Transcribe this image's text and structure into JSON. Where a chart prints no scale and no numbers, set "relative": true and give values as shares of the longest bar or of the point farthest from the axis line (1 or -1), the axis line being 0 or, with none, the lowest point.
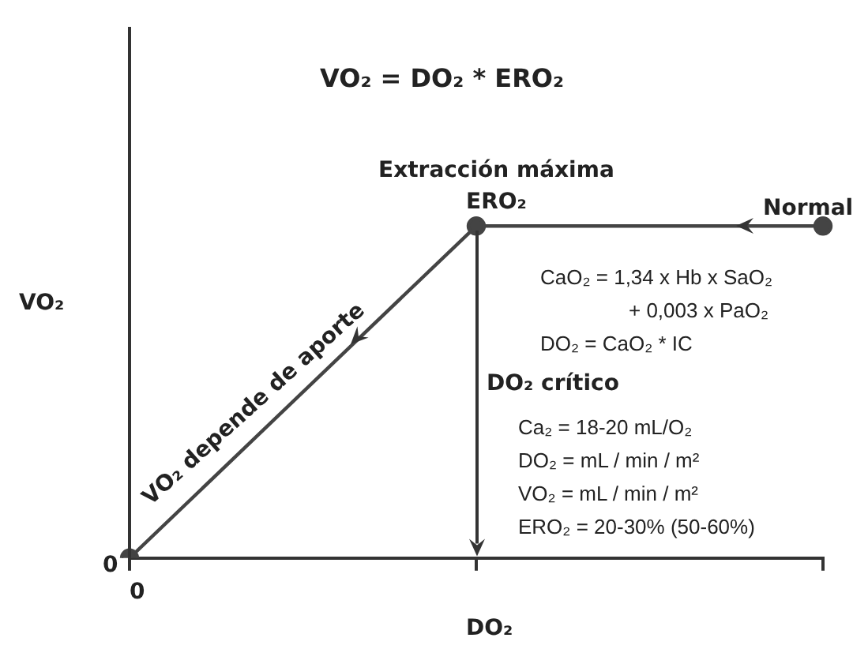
{
  "chart_data": {
    "type": "line",
    "title": "VO₂ = DO₂ * ERO₂",
    "xlabel": "DO₂",
    "ylabel": "VO₂",
    "relative": true,
    "grid": false,
    "legend": false,
    "categories": [
      null,
      null,
      null
    ],
    "series": [
      {
        "type": "line",
        "color": "#444444",
        "values": [
          0,
          1,
          1
        ],
        "marker": "circle"
      }
    ],
    "annotations": [
      "Extracción máxima",
      "ERO₂",
      "Normal",
      "VO₂ depende de aporte",
      "CaO₂ = 1,34 x Hb x SaO₂",
      "+ 0,003 x PaO₂",
      "DO₂ = CaO₂ * IC",
      "DO₂ crítico",
      "Ca₂ = 18-20 mL/O₂",
      "DO₂ = mL / min / m²",
      "VO₂ = mL / min / m²",
      "ERO₂ = 20-30% (50-60%)",
      "0",
      "0"
    ]
  }
}
